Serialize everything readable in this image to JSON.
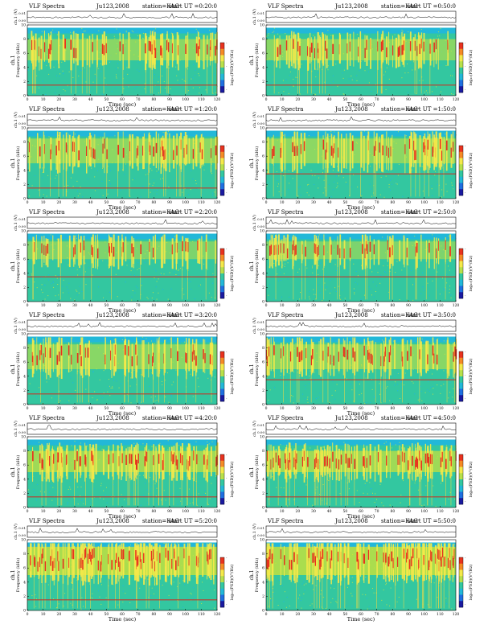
{
  "figure": {
    "header_title": "VLF Spectra",
    "date": "Ju123,2008",
    "station_label": "station=KAG",
    "start_prefix": "start  UT =",
    "top_ylabel": "ch.1 (V)",
    "top_ticks": [
      "0.00",
      "0.01"
    ],
    "ylabel_channel": "ch.1",
    "ylabel_freq": "Frequency (kHz)",
    "xlabel": "Time (sec)",
    "colorbar_label": "log₁₀(PSD)(V²/Hz)",
    "cb_ticks": [
      "-",
      "-",
      "-"
    ]
  },
  "chart_data": [
    {
      "type": "heatmap",
      "start_ut": "0:20:0",
      "title": "VLF Spectra",
      "date": "Ju123,2008",
      "station": "KAG",
      "xlabel": "Time (sec)",
      "ylabel": "Frequency (kHz)",
      "x_ticks": [
        "0",
        "10",
        "20",
        "30",
        "40",
        "50",
        "60",
        "70",
        "80",
        "90",
        "100",
        "110",
        "120"
      ],
      "y_ticks": [
        "0",
        "2",
        "4",
        "6",
        "8",
        "10"
      ],
      "xlim": [
        0,
        120
      ],
      "ylim": [
        0,
        10
      ],
      "hum_line_khz": [
        1.5
      ],
      "dense_band_khz": [
        5,
        8
      ],
      "density": 0.45,
      "seed": 11
    },
    {
      "type": "heatmap",
      "start_ut": "0:50:0",
      "title": "VLF Spectra",
      "date": "Ju123,2008",
      "station": "KAG",
      "xlabel": "Time (sec)",
      "ylabel": "Frequency (kHz)",
      "x_ticks": [
        "0",
        "10",
        "20",
        "30",
        "40",
        "50",
        "60",
        "70",
        "80",
        "90",
        "100",
        "110",
        "120"
      ],
      "y_ticks": [
        "0",
        "2",
        "4",
        "6",
        "8",
        "10"
      ],
      "xlim": [
        0,
        120
      ],
      "ylim": [
        0,
        10
      ],
      "hum_line_khz": [
        1.5
      ],
      "dense_band_khz": [
        5,
        8
      ],
      "density": 0.45,
      "seed": 23
    },
    {
      "type": "heatmap",
      "start_ut": "1:20:0",
      "title": "VLF Spectra",
      "date": "Ju123,2008",
      "station": "KAG",
      "xlabel": "Time (sec)",
      "ylabel": "Frequency (kHz)",
      "x_ticks": [
        "0",
        "10",
        "20",
        "30",
        "40",
        "50",
        "60",
        "70",
        "80",
        "90",
        "100",
        "110",
        "120"
      ],
      "y_ticks": [
        "0",
        "2",
        "4",
        "6",
        "8",
        "10"
      ],
      "xlim": [
        0,
        120
      ],
      "ylim": [
        0,
        10
      ],
      "hum_line_khz": [
        1.5
      ],
      "dense_band_khz": [
        5,
        8.5
      ],
      "density": 0.5,
      "seed": 37
    },
    {
      "type": "heatmap",
      "start_ut": "1:50:0",
      "title": "VLF Spectra",
      "date": "Ju123,2008",
      "station": "KAG",
      "xlabel": "Time (sec)",
      "ylabel": "Frequency (kHz)",
      "x_ticks": [
        "0",
        "10",
        "20",
        "30",
        "40",
        "50",
        "60",
        "70",
        "80",
        "90",
        "100",
        "110",
        "120"
      ],
      "y_ticks": [
        "0",
        "2",
        "4",
        "6",
        "8",
        "10"
      ],
      "xlim": [
        0,
        120
      ],
      "ylim": [
        0,
        10
      ],
      "hum_line_khz": [
        3.5
      ],
      "dense_band_khz": [
        5,
        8.5
      ],
      "density": 0.5,
      "seed": 41
    },
    {
      "type": "heatmap",
      "start_ut": "2:20:0",
      "title": "VLF Spectra",
      "date": "Ju123,2008",
      "station": "KAG",
      "xlabel": "Time (sec)",
      "ylabel": "Frequency (kHz)",
      "x_ticks": [
        "0",
        "10",
        "20",
        "30",
        "40",
        "50",
        "60",
        "70",
        "80",
        "90",
        "100",
        "110",
        "120"
      ],
      "y_ticks": [
        "0",
        "2",
        "4",
        "6",
        "8",
        "10"
      ],
      "xlim": [
        0,
        120
      ],
      "ylim": [
        0,
        10
      ],
      "hum_line_khz": [
        3.5
      ],
      "dense_band_khz": [
        6,
        8.5
      ],
      "density": 0.3,
      "seed": 53
    },
    {
      "type": "heatmap",
      "start_ut": "2:50:0",
      "title": "VLF Spectra",
      "date": "Ju123,2008",
      "station": "KAG",
      "xlabel": "Time (sec)",
      "ylabel": "Frequency (kHz)",
      "x_ticks": [
        "0",
        "10",
        "20",
        "30",
        "40",
        "50",
        "60",
        "70",
        "80",
        "90",
        "100",
        "110",
        "120"
      ],
      "y_ticks": [
        "0",
        "2",
        "4",
        "6",
        "8",
        "10"
      ],
      "xlim": [
        0,
        120
      ],
      "ylim": [
        0,
        10
      ],
      "hum_line_khz": [
        3.5
      ],
      "dense_band_khz": [
        6,
        8.5
      ],
      "density": 0.3,
      "seed": 67
    },
    {
      "type": "heatmap",
      "start_ut": "3:20:0",
      "title": "VLF Spectra",
      "date": "Ju123,2008",
      "station": "KAG",
      "xlabel": "Time (sec)",
      "ylabel": "Frequency (kHz)",
      "x_ticks": [
        "0",
        "10",
        "20",
        "30",
        "40",
        "50",
        "60",
        "70",
        "80",
        "90",
        "100",
        "110",
        "120"
      ],
      "y_ticks": [
        "0",
        "2",
        "4",
        "6",
        "8",
        "10"
      ],
      "xlim": [
        0,
        120
      ],
      "ylim": [
        0,
        10
      ],
      "hum_line_khz": [
        1.5
      ],
      "dense_band_khz": [
        5,
        8.5
      ],
      "density": 0.45,
      "seed": 71
    },
    {
      "type": "heatmap",
      "start_ut": "3:50:0",
      "title": "VLF Spectra",
      "date": "Ju123,2008",
      "station": "KAG",
      "xlabel": "Time (sec)",
      "ylabel": "Frequency (kHz)",
      "x_ticks": [
        "0",
        "10",
        "20",
        "30",
        "40",
        "50",
        "60",
        "70",
        "80",
        "90",
        "100",
        "110",
        "120"
      ],
      "y_ticks": [
        "0",
        "2",
        "4",
        "6",
        "8",
        "10"
      ],
      "xlim": [
        0,
        120
      ],
      "ylim": [
        0,
        10
      ],
      "hum_line_khz": [
        3.5
      ],
      "dense_band_khz": [
        5,
        8.5
      ],
      "density": 0.45,
      "seed": 83
    },
    {
      "type": "heatmap",
      "start_ut": "4:20:0",
      "title": "VLF Spectra",
      "date": "Ju123,2008",
      "station": "KAG",
      "xlabel": "Time (sec)",
      "ylabel": "Frequency (kHz)",
      "x_ticks": [
        "0",
        "10",
        "20",
        "30",
        "40",
        "50",
        "60",
        "70",
        "80",
        "90",
        "100",
        "110",
        "120"
      ],
      "y_ticks": [
        "0",
        "2",
        "4",
        "6",
        "8",
        "10"
      ],
      "xlim": [
        0,
        120
      ],
      "ylim": [
        0,
        10
      ],
      "hum_line_khz": [
        1.5
      ],
      "dense_band_khz": [
        5,
        8
      ],
      "density": 0.75,
      "seed": 97
    },
    {
      "type": "heatmap",
      "start_ut": "4:50:0",
      "title": "VLF Spectra",
      "date": "Ju123,2008",
      "station": "KAG",
      "xlabel": "Time (sec)",
      "ylabel": "Frequency (kHz)",
      "x_ticks": [
        "0",
        "10",
        "20",
        "30",
        "40",
        "50",
        "60",
        "70",
        "80",
        "90",
        "100",
        "110",
        "120"
      ],
      "y_ticks": [
        "0",
        "2",
        "4",
        "6",
        "8",
        "10"
      ],
      "xlim": [
        0,
        120
      ],
      "ylim": [
        0,
        10
      ],
      "hum_line_khz": [
        1.5
      ],
      "dense_band_khz": [
        5,
        8
      ],
      "density": 0.75,
      "seed": 101
    },
    {
      "type": "heatmap",
      "start_ut": "5:20:0",
      "title": "VLF Spectra",
      "date": "Ju123,2008",
      "station": "KAG",
      "xlabel": "Time (sec)",
      "ylabel": "Frequency (kHz)",
      "x_ticks": [
        "0",
        "10",
        "20",
        "30",
        "40",
        "50",
        "60",
        "70",
        "80",
        "90",
        "100",
        "110",
        "120"
      ],
      "y_ticks": [
        "0",
        "2",
        "4",
        "6",
        "8",
        "10"
      ],
      "xlim": [
        0,
        120
      ],
      "ylim": [
        0,
        10
      ],
      "hum_line_khz": [
        1.5
      ],
      "dense_band_khz": [
        5,
        9
      ],
      "density": 0.9,
      "seed": 113
    },
    {
      "type": "heatmap",
      "start_ut": "5:50:0",
      "title": "VLF Spectra",
      "date": "Ju123,2008",
      "station": "KAG",
      "xlabel": "Time (sec)",
      "ylabel": "Frequency (kHz)",
      "x_ticks": [
        "0",
        "10",
        "20",
        "30",
        "40",
        "50",
        "60",
        "70",
        "80",
        "90",
        "100",
        "110",
        "120"
      ],
      "y_ticks": [
        "0",
        "2",
        "4",
        "6",
        "8",
        "10"
      ],
      "xlim": [
        0,
        120
      ],
      "ylim": [
        0,
        10
      ],
      "hum_line_khz": [],
      "dense_band_khz": [
        5,
        9
      ],
      "density": 0.9,
      "seed": 127
    }
  ]
}
